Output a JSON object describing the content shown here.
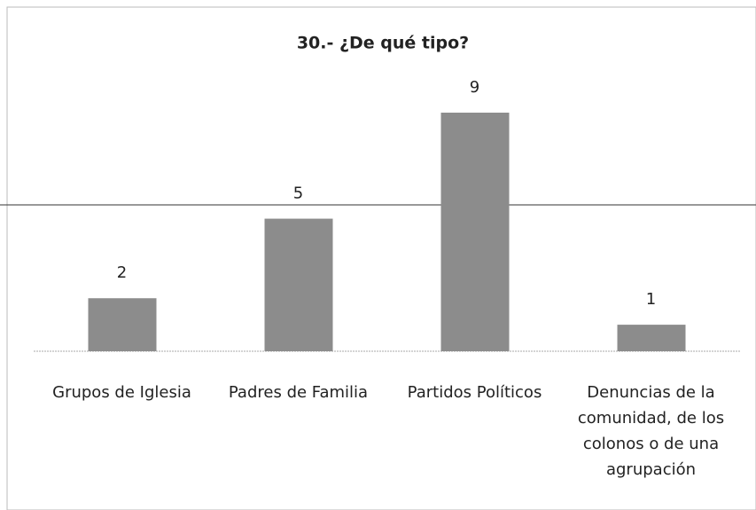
{
  "chart_data": {
    "type": "bar",
    "title": "30.- ¿De qué tipo?",
    "categories": [
      "Grupos de Iglesia",
      "Padres de Familia",
      "Partidos Políticos",
      "Denuncias de la comunidad, de los colonos o de una agrupación"
    ],
    "values": [
      2,
      5,
      9,
      1
    ],
    "color": "#8c8c8c"
  }
}
